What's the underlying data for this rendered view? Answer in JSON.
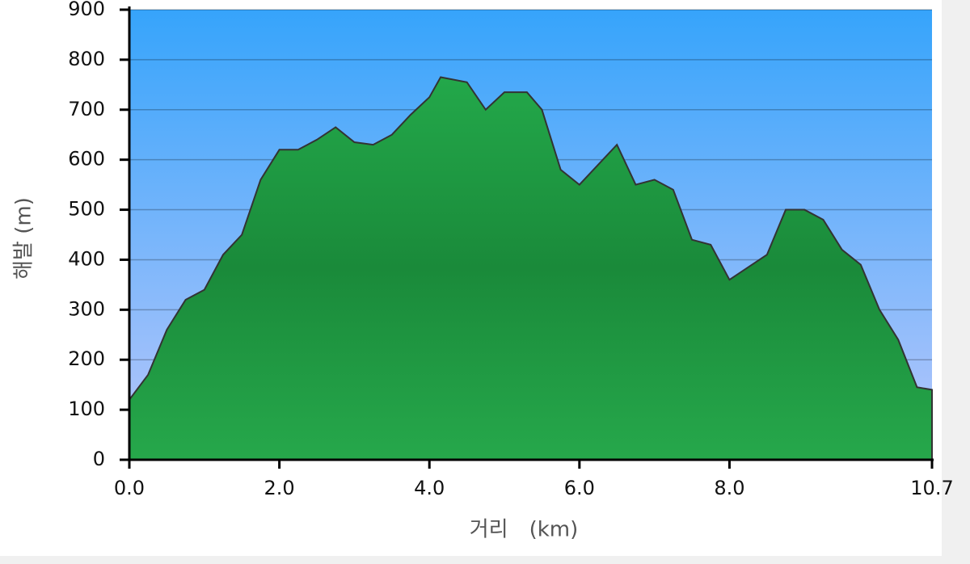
{
  "chart_data": {
    "type": "area",
    "x_label": "거리　(km)",
    "y_label": "해발 (m)",
    "x": [
      0.0,
      0.25,
      0.5,
      0.75,
      1.0,
      1.25,
      1.5,
      1.75,
      2.0,
      2.25,
      2.5,
      2.75,
      3.0,
      3.25,
      3.5,
      3.75,
      4.0,
      4.15,
      4.5,
      4.75,
      5.0,
      5.3,
      5.5,
      5.75,
      6.0,
      6.25,
      6.5,
      6.75,
      7.0,
      7.25,
      7.5,
      7.75,
      8.0,
      8.25,
      8.5,
      8.75,
      9.0,
      9.25,
      9.5,
      9.75,
      10.0,
      10.25,
      10.5,
      10.7
    ],
    "values": [
      120,
      170,
      260,
      320,
      340,
      410,
      450,
      560,
      620,
      620,
      640,
      665,
      635,
      630,
      650,
      690,
      725,
      765,
      755,
      700,
      735,
      735,
      700,
      580,
      550,
      590,
      630,
      550,
      560,
      540,
      440,
      430,
      360,
      385,
      410,
      500,
      500,
      480,
      420,
      390,
      300,
      240,
      145,
      140
    ],
    "color": "#1f9e45",
    "xlim": [
      0,
      10.7
    ],
    "xticks": [
      {
        "value": 0,
        "label": "0.0"
      },
      {
        "value": 2,
        "label": "2.0"
      },
      {
        "value": 4,
        "label": "4.0"
      },
      {
        "value": 6,
        "label": "6.0"
      },
      {
        "value": 8,
        "label": "8.0"
      },
      {
        "value": 10.7,
        "label": "10.7"
      }
    ],
    "ylim": [
      0,
      900
    ],
    "yticks": [
      0,
      100,
      200,
      300,
      400,
      500,
      600,
      700,
      800,
      900
    ],
    "grid": true
  }
}
